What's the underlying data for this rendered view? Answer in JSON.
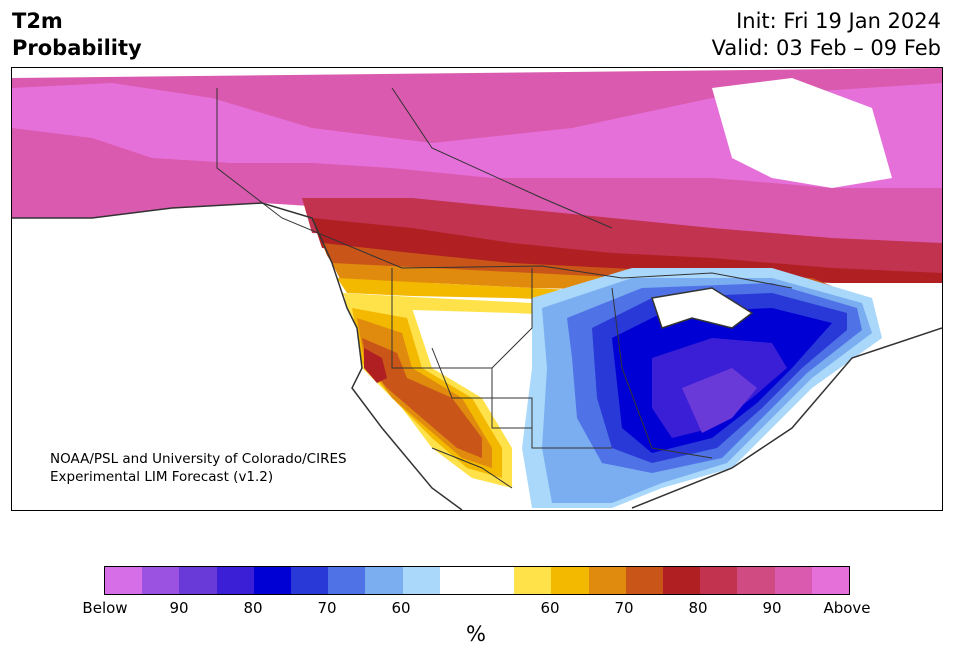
{
  "header": {
    "title_line1": "T2m",
    "title_line2": "Probability",
    "init_text": "Init: Fri 19 Jan 2024",
    "valid_text": "Valid: 03 Feb – 09 Feb"
  },
  "map": {
    "credit_line1": "NOAA/PSL and University of Colorado/CIRES",
    "credit_line2": "Experimental LIM Forecast (v1.2)"
  },
  "colorbar": {
    "colors": [
      "#d66ee8",
      "#9b52e0",
      "#6a3ad9",
      "#3b1fd6",
      "#0000d4",
      "#2939d8",
      "#4f72e6",
      "#7aaef1",
      "#aad8fa",
      "#ffffff",
      "#ffffff",
      "#ffe24a",
      "#f3b800",
      "#e08a0e",
      "#c95518",
      "#b01f22",
      "#c2334f",
      "#cf4b82",
      "#d95aae",
      "#e670da"
    ],
    "labels": [
      "Below",
      "90",
      "80",
      "70",
      "60",
      "60",
      "70",
      "80",
      "90",
      "Above"
    ],
    "unit": "%"
  }
}
